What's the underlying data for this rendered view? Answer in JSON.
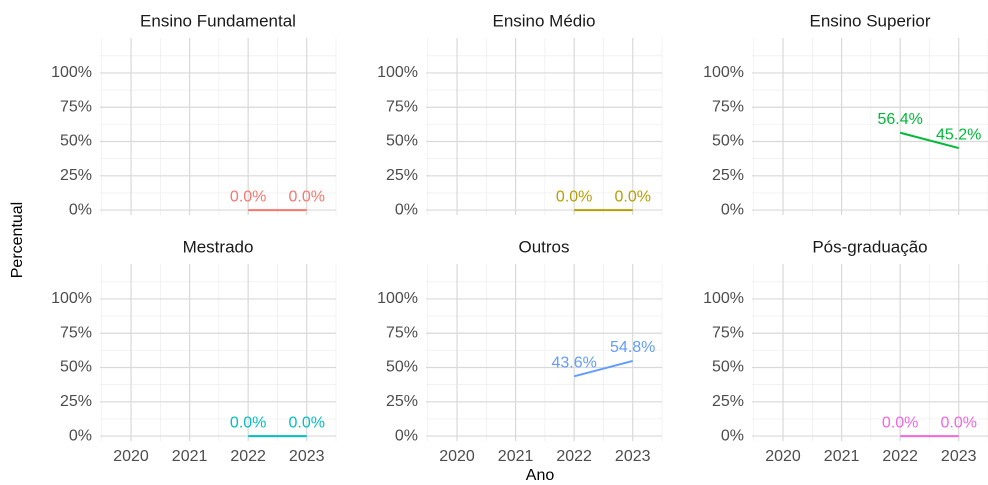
{
  "x_label": "Ano",
  "y_label": "Percentual",
  "chart_data": [
    {
      "type": "line",
      "title": "Ensino Fundamental",
      "x": [
        2022,
        2023
      ],
      "values": [
        0,
        0
      ],
      "value_labels": [
        "0.0%",
        "0.0%"
      ],
      "color": "#F8766D",
      "xlim": [
        2019.47,
        2023.5
      ],
      "ylim": [
        -3.6,
        125.5
      ],
      "xticks": [
        2020,
        2021,
        2022,
        2023
      ],
      "yticks": [
        {
          "value": 0,
          "label": "0%"
        },
        {
          "value": 25,
          "label": "25%"
        },
        {
          "value": 50,
          "label": "50%"
        },
        {
          "value": 75,
          "label": "75%"
        },
        {
          "value": 100,
          "label": "100%"
        }
      ],
      "grid": true
    },
    {
      "type": "line",
      "title": "Ensino Médio",
      "x": [
        2022,
        2023
      ],
      "values": [
        0,
        0
      ],
      "value_labels": [
        "0.0%",
        "0.0%"
      ],
      "color": "#B79F00",
      "xlim": [
        2019.47,
        2023.5
      ],
      "ylim": [
        -3.6,
        125.5
      ],
      "xticks": [
        2020,
        2021,
        2022,
        2023
      ],
      "yticks": [
        {
          "value": 0,
          "label": "0%"
        },
        {
          "value": 25,
          "label": "25%"
        },
        {
          "value": 50,
          "label": "50%"
        },
        {
          "value": 75,
          "label": "75%"
        },
        {
          "value": 100,
          "label": "100%"
        }
      ],
      "grid": true
    },
    {
      "type": "line",
      "title": "Ensino Superior",
      "x": [
        2022,
        2023
      ],
      "values": [
        56.4,
        45.2
      ],
      "value_labels": [
        "56.4%",
        "45.2%"
      ],
      "color": "#00BA38",
      "xlim": [
        2019.47,
        2023.5
      ],
      "ylim": [
        -3.6,
        125.5
      ],
      "xticks": [
        2020,
        2021,
        2022,
        2023
      ],
      "yticks": [
        {
          "value": 0,
          "label": "0%"
        },
        {
          "value": 25,
          "label": "25%"
        },
        {
          "value": 50,
          "label": "50%"
        },
        {
          "value": 75,
          "label": "75%"
        },
        {
          "value": 100,
          "label": "100%"
        }
      ],
      "grid": true
    },
    {
      "type": "line",
      "title": "Mestrado",
      "x": [
        2022,
        2023
      ],
      "values": [
        0,
        0
      ],
      "value_labels": [
        "0.0%",
        "0.0%"
      ],
      "color": "#00BFC4",
      "xlim": [
        2019.47,
        2023.5
      ],
      "ylim": [
        -3.6,
        125.5
      ],
      "xticks": [
        2020,
        2021,
        2022,
        2023
      ],
      "yticks": [
        {
          "value": 0,
          "label": "0%"
        },
        {
          "value": 25,
          "label": "25%"
        },
        {
          "value": 50,
          "label": "50%"
        },
        {
          "value": 75,
          "label": "75%"
        },
        {
          "value": 100,
          "label": "100%"
        }
      ],
      "grid": true
    },
    {
      "type": "line",
      "title": "Outros",
      "x": [
        2022,
        2023
      ],
      "values": [
        43.6,
        54.8
      ],
      "value_labels": [
        "43.6%",
        "54.8%"
      ],
      "color": "#619CFF",
      "xlim": [
        2019.47,
        2023.5
      ],
      "ylim": [
        -3.6,
        125.5
      ],
      "xticks": [
        2020,
        2021,
        2022,
        2023
      ],
      "yticks": [
        {
          "value": 0,
          "label": "0%"
        },
        {
          "value": 25,
          "label": "25%"
        },
        {
          "value": 50,
          "label": "50%"
        },
        {
          "value": 75,
          "label": "75%"
        },
        {
          "value": 100,
          "label": "100%"
        }
      ],
      "grid": true
    },
    {
      "type": "line",
      "title": "Pós-graduação",
      "x": [
        2022,
        2023
      ],
      "values": [
        0,
        0
      ],
      "value_labels": [
        "0.0%",
        "0.0%"
      ],
      "color": "#F564E3",
      "xlim": [
        2019.47,
        2023.5
      ],
      "ylim": [
        -3.6,
        125.5
      ],
      "xticks": [
        2020,
        2021,
        2022,
        2023
      ],
      "yticks": [
        {
          "value": 0,
          "label": "0%"
        },
        {
          "value": 25,
          "label": "25%"
        },
        {
          "value": 50,
          "label": "50%"
        },
        {
          "value": 75,
          "label": "75%"
        },
        {
          "value": 100,
          "label": "100%"
        }
      ],
      "grid": true
    }
  ]
}
